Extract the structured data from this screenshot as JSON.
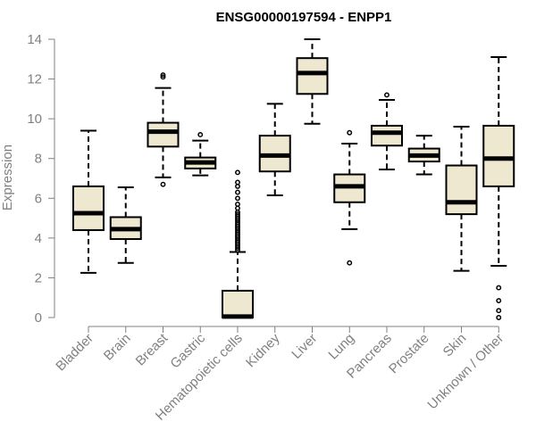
{
  "chart_data": {
    "type": "box",
    "title": "ENSG00000197594 - ENPP1",
    "xlabel": "",
    "ylabel": "Expression",
    "ylim": [
      0,
      14
    ],
    "yticks": [
      0,
      2,
      4,
      6,
      8,
      10,
      12,
      14
    ],
    "colors": {
      "box_fill": "#efe8d0",
      "stroke": "#000000",
      "axis": "#808080"
    },
    "categories": [
      "Bladder",
      "Brain",
      "Breast",
      "Gastric",
      "Hematopoietic cells",
      "Kidney",
      "Liver",
      "Lung",
      "Pancreas",
      "Prostate",
      "Skin",
      "Unknown / Other"
    ],
    "boxes": [
      {
        "name": "Bladder",
        "whisker_low": 2.25,
        "q1": 4.4,
        "median": 5.25,
        "q3": 6.6,
        "whisker_high": 9.4,
        "outliers": []
      },
      {
        "name": "Brain",
        "whisker_low": 2.75,
        "q1": 3.95,
        "median": 4.45,
        "q3": 5.05,
        "whisker_high": 6.55,
        "outliers": []
      },
      {
        "name": "Breast",
        "whisker_low": 7.05,
        "q1": 8.6,
        "median": 9.35,
        "q3": 9.8,
        "whisker_high": 11.55,
        "outliers": [
          6.7,
          12.1,
          12.2
        ]
      },
      {
        "name": "Gastric",
        "whisker_low": 7.15,
        "q1": 7.5,
        "median": 7.8,
        "q3": 8.05,
        "whisker_high": 8.9,
        "outliers": [
          9.2
        ]
      },
      {
        "name": "Hematopoietic cells",
        "whisker_low": 0.0,
        "q1": 0.0,
        "median": 0.05,
        "q3": 1.35,
        "whisker_high": 3.3,
        "outliers": [
          3.4,
          3.5,
          3.6,
          3.7,
          3.8,
          3.9,
          4.0,
          4.1,
          4.2,
          4.3,
          4.4,
          4.5,
          4.6,
          4.7,
          4.8,
          4.9,
          5.0,
          5.1,
          5.2,
          5.3,
          5.5,
          5.7,
          6.0,
          6.3,
          6.6,
          6.8,
          7.3
        ]
      },
      {
        "name": "Kidney",
        "whisker_low": 6.15,
        "q1": 7.35,
        "median": 8.15,
        "q3": 9.15,
        "whisker_high": 10.75,
        "outliers": []
      },
      {
        "name": "Liver",
        "whisker_low": 9.75,
        "q1": 11.25,
        "median": 12.3,
        "q3": 13.05,
        "whisker_high": 14.0,
        "outliers": []
      },
      {
        "name": "Lung",
        "whisker_low": 4.45,
        "q1": 5.8,
        "median": 6.6,
        "q3": 7.2,
        "whisker_high": 8.75,
        "outliers": [
          2.75,
          9.3
        ]
      },
      {
        "name": "Pancreas",
        "whisker_low": 7.45,
        "q1": 8.65,
        "median": 9.3,
        "q3": 9.65,
        "whisker_high": 10.95,
        "outliers": [
          11.2
        ]
      },
      {
        "name": "Prostate",
        "whisker_low": 7.2,
        "q1": 7.85,
        "median": 8.15,
        "q3": 8.5,
        "whisker_high": 9.15,
        "outliers": []
      },
      {
        "name": "Skin",
        "whisker_low": 2.35,
        "q1": 5.2,
        "median": 5.8,
        "q3": 7.65,
        "whisker_high": 9.6,
        "outliers": []
      },
      {
        "name": "Unknown / Other",
        "whisker_low": 2.6,
        "q1": 6.6,
        "median": 8.0,
        "q3": 9.65,
        "whisker_high": 13.1,
        "outliers": [
          0.0,
          0.35,
          0.85,
          1.5
        ]
      }
    ]
  }
}
